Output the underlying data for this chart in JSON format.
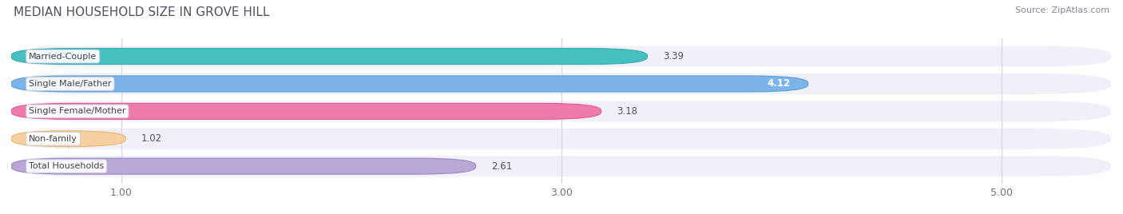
{
  "title": "MEDIAN HOUSEHOLD SIZE IN GROVE HILL",
  "source": "Source: ZipAtlas.com",
  "categories": [
    "Married-Couple",
    "Single Male/Father",
    "Single Female/Mother",
    "Non-family",
    "Total Households"
  ],
  "values": [
    3.39,
    4.12,
    3.18,
    1.02,
    2.61
  ],
  "bar_colors": [
    "#45bfbf",
    "#7ab4e8",
    "#f07aaa",
    "#f5cfa0",
    "#b8a8d8"
  ],
  "bar_edge_colors": [
    "#35aeae",
    "#5a9fd4",
    "#e05898",
    "#e8b870",
    "#9b88c2"
  ],
  "value_label_white": [
    false,
    true,
    false,
    false,
    false
  ],
  "xlim_data": [
    0.0,
    5.5
  ],
  "xlim_display": [
    0.5,
    5.5
  ],
  "xticks": [
    1.0,
    3.0,
    5.0
  ],
  "bg_color": "#ffffff",
  "row_bg_color": "#f0f0f8",
  "grid_color": "#d8d8e8",
  "title_color": "#505060",
  "source_color": "#888898",
  "title_fontsize": 11,
  "source_fontsize": 8,
  "tick_fontsize": 9,
  "value_fontsize": 8.5,
  "label_fontsize": 8
}
